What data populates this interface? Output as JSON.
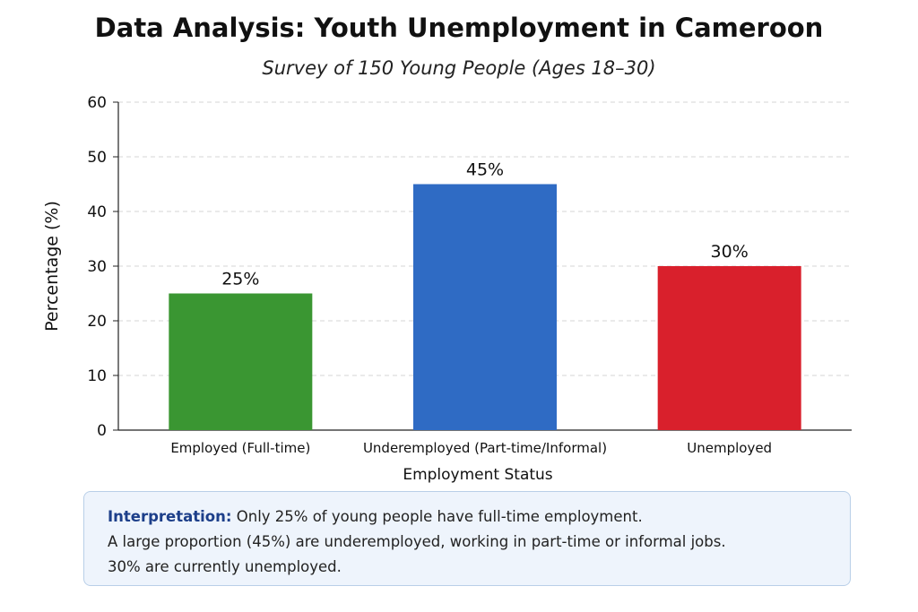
{
  "chart_data": {
    "type": "bar",
    "title": "Data Analysis: Youth Unemployment in Cameroon",
    "subtitle": "Survey of 150 Young People (Ages 18–30)",
    "xlabel": "Employment Status",
    "ylabel": "Percentage (%)",
    "categories": [
      "Employed (Full-time)",
      "Underemployed (Part-time/Informal)",
      "Unemployed"
    ],
    "values": [
      25,
      45,
      30
    ],
    "data_labels": [
      "25%",
      "45%",
      "30%"
    ],
    "colors": [
      "#3a9632",
      "#2f6bc4",
      "#d9202c"
    ],
    "ylim": [
      0,
      60
    ],
    "yticks": [
      0,
      10,
      20,
      30,
      40,
      50,
      60
    ],
    "grid": true,
    "legend": "none"
  },
  "interpretation": {
    "lead": "Interpretation:",
    "line1": "Only 25% of young people have full-time employment.",
    "line2": "A large proportion (45%) are underemployed, working in part-time or informal jobs.",
    "line3": "30% are currently unemployed."
  }
}
